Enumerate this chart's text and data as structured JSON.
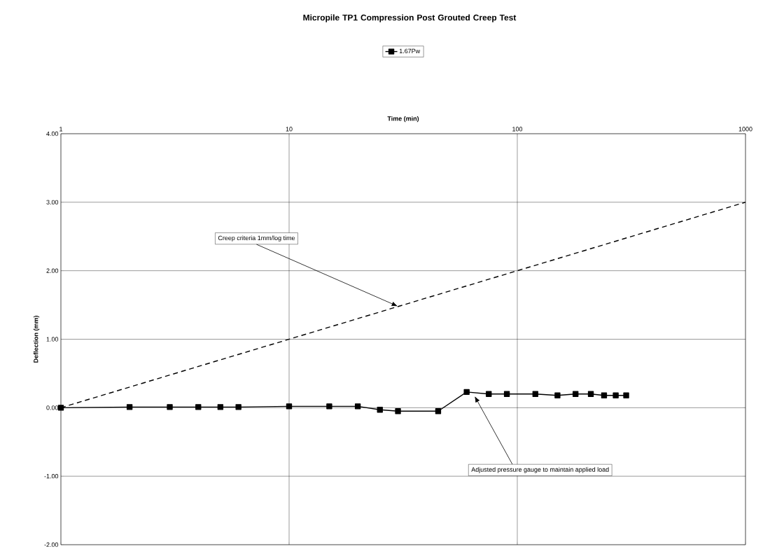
{
  "chart_data": {
    "type": "line",
    "title": "Micropile TP1 Compression Post Grouted Creep Test",
    "xlabel": "Time (min)",
    "ylabel": "Deflection (mm)",
    "log": "x",
    "grid": true,
    "legend": "top",
    "marker": "square",
    "xlim": [
      1,
      1000
    ],
    "ylim": [
      -2,
      4
    ],
    "xticks": [
      1,
      10,
      100,
      1000
    ],
    "yticks": [
      {
        "value": -2,
        "label": "-2.00"
      },
      {
        "value": -1,
        "label": "-1.00"
      },
      {
        "value": 0,
        "label": "0.00"
      },
      {
        "value": 1,
        "label": "1.00"
      },
      {
        "value": 2,
        "label": "2.00"
      },
      {
        "value": 3,
        "label": "3.00"
      },
      {
        "value": 4,
        "label": "4.00"
      }
    ],
    "series": [
      {
        "name": "1.67Pw",
        "color": "#000000",
        "x": [
          1,
          2,
          3,
          4,
          5,
          6,
          10,
          15,
          20,
          25,
          30,
          45,
          60,
          75,
          90,
          120,
          150,
          180,
          210,
          240,
          270,
          300
        ],
        "values": [
          0,
          0.01,
          0.01,
          0.01,
          0.01,
          0.01,
          0.02,
          0.02,
          0.02,
          -0.03,
          -0.05,
          -0.05,
          0.23,
          0.2,
          0.2,
          0.2,
          0.18,
          0.2,
          0.2,
          0.18,
          0.18,
          0.18
        ]
      },
      {
        "color": "#000000",
        "marker": "none",
        "line_style": "dashed",
        "x": [
          1,
          1000
        ],
        "values": [
          0,
          3
        ]
      }
    ],
    "annotations": [
      {
        "text": "Creep criteria  1mm/log time",
        "x": 30,
        "y": 1.48
      },
      {
        "text": "Adjusted pressure gauge to maintain applied load",
        "x": 65,
        "y": 0.17
      }
    ]
  }
}
